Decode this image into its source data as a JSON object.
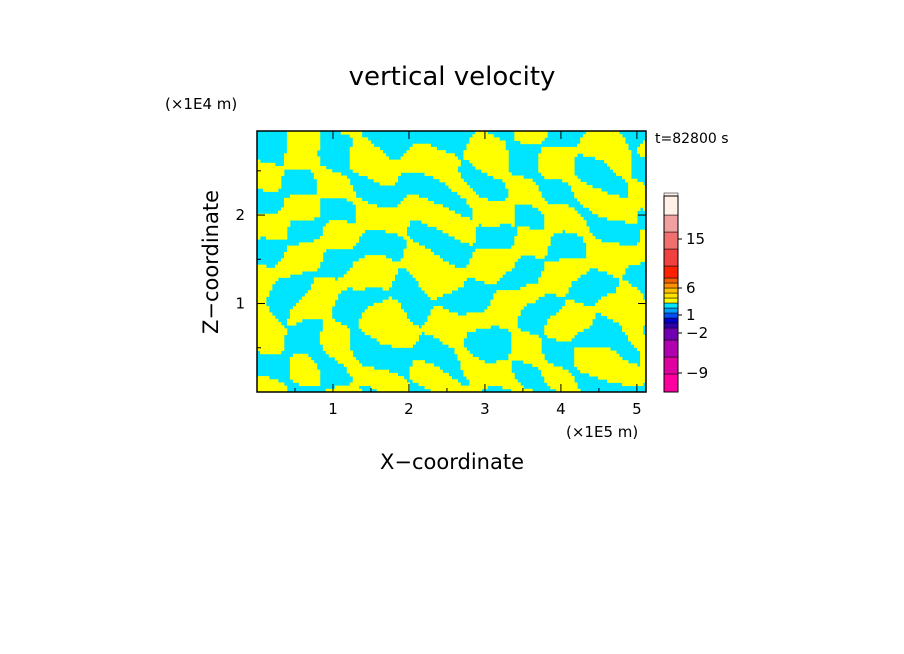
{
  "chart_data": {
    "type": "heatmap",
    "title": "vertical velocity",
    "xlabel": "X−coordinate",
    "ylabel": "Z−coordinate",
    "x_unit": "(×1E5 m)",
    "y_unit": "(×1E4 m)",
    "time_label": "t=82800 s",
    "xlim": [
      0,
      5.12
    ],
    "ylim": [
      0,
      2.95
    ],
    "x_ticks": [
      {
        "value": 1,
        "label": "1"
      },
      {
        "value": 2,
        "label": "2"
      },
      {
        "value": 3,
        "label": "3"
      },
      {
        "value": 4,
        "label": "4"
      },
      {
        "value": 5,
        "label": "5"
      }
    ],
    "y_ticks": [
      {
        "value": 1,
        "label": "1"
      },
      {
        "value": 2,
        "label": "2"
      }
    ],
    "grid": false,
    "dominant_classes": [
      {
        "range": [
          0,
          1
        ],
        "color": "#ffff00"
      },
      {
        "range": [
          -1,
          0
        ],
        "color": "#00e5ff"
      }
    ],
    "colorbar": {
      "placement": "right",
      "levels": [
        {
          "color": "#ff00a0"
        },
        {
          "color": "#e000a0"
        },
        {
          "color": "#b000b0"
        },
        {
          "color": "#7000b0"
        },
        {
          "color": "#3000b0"
        },
        {
          "color": "#0000c8"
        },
        {
          "color": "#0050ff"
        },
        {
          "color": "#00a0ff"
        },
        {
          "color": "#00e5ff"
        },
        {
          "color": "#ffff00"
        },
        {
          "color": "#ffe000"
        },
        {
          "color": "#ffc000"
        },
        {
          "color": "#ff9000"
        },
        {
          "color": "#f06000"
        },
        {
          "color": "#ff2000"
        },
        {
          "color": "#f04040"
        },
        {
          "color": "#f07070"
        },
        {
          "color": "#f0a0a0"
        },
        {
          "color": "#fff0e8"
        }
      ],
      "labels": [
        {
          "value": "15",
          "label": "15"
        },
        {
          "value": "6",
          "label": "6"
        },
        {
          "value": "1",
          "label": "1"
        },
        {
          "value": "-2",
          "label": "−2"
        },
        {
          "value": "-9",
          "label": "−9"
        }
      ]
    }
  }
}
